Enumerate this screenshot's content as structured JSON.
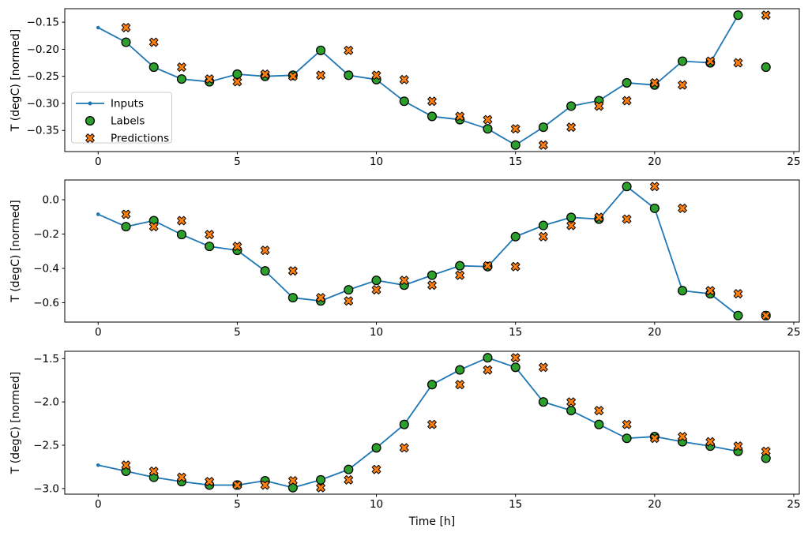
{
  "figure": {
    "xlabel": "Time [h]",
    "ylabel": "T (degC) [normed]",
    "background": "#ffffff",
    "spine_color": "#000000",
    "text_color": "#000000",
    "x_ticks": [
      {
        "v": 0,
        "label": "0"
      },
      {
        "v": 5,
        "label": "5"
      },
      {
        "v": 10,
        "label": "10"
      },
      {
        "v": 15,
        "label": "15"
      },
      {
        "v": 20,
        "label": "20"
      },
      {
        "v": 25,
        "label": "25"
      }
    ],
    "legend": {
      "items": [
        {
          "label": "Inputs",
          "type": "line",
          "color": "#1f77b4",
          "edge": "#1f77b4"
        },
        {
          "label": "Labels",
          "type": "circle",
          "color": "#2ca02c",
          "edge": "#000000"
        },
        {
          "label": "Predictions",
          "type": "x",
          "color": "#ff7f0e",
          "edge": "#000000"
        }
      ]
    }
  },
  "chart_data": [
    {
      "type": "line",
      "ylabel": "T (degC) [normed]",
      "xlim": [
        -1.2,
        25.2
      ],
      "ylim": [
        -0.389,
        -0.125
      ],
      "grid": false,
      "legend_position": "center-left-of-first-subplot",
      "y_ticks": [
        {
          "v": -0.15,
          "label": "−0.15"
        },
        {
          "v": -0.2,
          "label": "−0.20"
        },
        {
          "v": -0.25,
          "label": "−0.25"
        },
        {
          "v": -0.3,
          "label": "−0.30"
        },
        {
          "v": -0.35,
          "label": "−0.35"
        }
      ],
      "inputs": {
        "x": [
          0,
          1,
          2,
          3,
          4,
          5,
          6,
          7,
          8,
          9,
          10,
          11,
          12,
          13,
          14,
          15,
          16,
          17,
          18,
          19,
          20,
          21,
          22,
          23
        ],
        "y": [
          -0.16,
          -0.187,
          -0.233,
          -0.255,
          -0.26,
          -0.246,
          -0.25,
          -0.248,
          -0.202,
          -0.248,
          -0.256,
          -0.296,
          -0.324,
          -0.33,
          -0.347,
          -0.377,
          -0.344,
          -0.305,
          -0.295,
          -0.262,
          -0.266,
          -0.222,
          -0.225,
          -0.137
        ]
      },
      "labels": {
        "x": [
          1,
          2,
          3,
          4,
          5,
          6,
          7,
          8,
          9,
          10,
          11,
          12,
          13,
          14,
          15,
          16,
          17,
          18,
          19,
          20,
          21,
          22,
          23,
          24
        ],
        "y": [
          -0.187,
          -0.233,
          -0.255,
          -0.26,
          -0.246,
          -0.25,
          -0.248,
          -0.202,
          -0.248,
          -0.256,
          -0.296,
          -0.324,
          -0.33,
          -0.347,
          -0.377,
          -0.344,
          -0.305,
          -0.295,
          -0.262,
          -0.266,
          -0.222,
          -0.225,
          -0.137,
          -0.233
        ]
      },
      "predictions": {
        "x": [
          1,
          2,
          3,
          4,
          5,
          6,
          7,
          8,
          9,
          10,
          11,
          12,
          13,
          14,
          15,
          16,
          17,
          18,
          19,
          20,
          21,
          22,
          23,
          24
        ],
        "y": [
          -0.16,
          -0.187,
          -0.233,
          -0.255,
          -0.26,
          -0.246,
          -0.25,
          -0.248,
          -0.202,
          -0.248,
          -0.256,
          -0.296,
          -0.324,
          -0.33,
          -0.347,
          -0.377,
          -0.344,
          -0.305,
          -0.295,
          -0.262,
          -0.266,
          -0.222,
          -0.225,
          -0.137
        ]
      }
    },
    {
      "type": "line",
      "ylabel": "T (degC) [normed]",
      "xlim": [
        -1.2,
        25.2
      ],
      "ylim": [
        -0.713,
        0.115
      ],
      "grid": false,
      "y_ticks": [
        {
          "v": 0.0,
          "label": "0.0"
        },
        {
          "v": -0.2,
          "label": "−0.2"
        },
        {
          "v": -0.4,
          "label": "−0.4"
        },
        {
          "v": -0.6,
          "label": "−0.6"
        }
      ],
      "inputs": {
        "x": [
          0,
          1,
          2,
          3,
          4,
          5,
          6,
          7,
          8,
          9,
          10,
          11,
          12,
          13,
          14,
          15,
          16,
          17,
          18,
          19,
          20,
          21,
          22,
          23
        ],
        "y": [
          -0.085,
          -0.157,
          -0.122,
          -0.203,
          -0.272,
          -0.295,
          -0.415,
          -0.571,
          -0.59,
          -0.525,
          -0.47,
          -0.498,
          -0.44,
          -0.385,
          -0.39,
          -0.215,
          -0.15,
          -0.103,
          -0.113,
          0.077,
          -0.05,
          -0.53,
          -0.548,
          -0.675
        ]
      },
      "labels": {
        "x": [
          1,
          2,
          3,
          4,
          5,
          6,
          7,
          8,
          9,
          10,
          11,
          12,
          13,
          14,
          15,
          16,
          17,
          18,
          19,
          20,
          21,
          22,
          23,
          24
        ],
        "y": [
          -0.157,
          -0.122,
          -0.203,
          -0.272,
          -0.295,
          -0.415,
          -0.571,
          -0.59,
          -0.525,
          -0.47,
          -0.498,
          -0.44,
          -0.385,
          -0.39,
          -0.215,
          -0.15,
          -0.103,
          -0.113,
          0.077,
          -0.05,
          -0.53,
          -0.548,
          -0.675,
          -0.675
        ]
      },
      "predictions": {
        "x": [
          1,
          2,
          3,
          4,
          5,
          6,
          7,
          8,
          9,
          10,
          11,
          12,
          13,
          14,
          15,
          16,
          17,
          18,
          19,
          20,
          21,
          22,
          23,
          24
        ],
        "y": [
          -0.085,
          -0.157,
          -0.122,
          -0.203,
          -0.272,
          -0.295,
          -0.415,
          -0.571,
          -0.59,
          -0.525,
          -0.47,
          -0.498,
          -0.44,
          -0.385,
          -0.39,
          -0.215,
          -0.15,
          -0.103,
          -0.113,
          0.077,
          -0.05,
          -0.53,
          -0.548,
          -0.675
        ]
      }
    },
    {
      "type": "line",
      "ylabel": "T (degC) [normed]",
      "xlabel": "Time [h]",
      "xlim": [
        -1.2,
        25.2
      ],
      "ylim": [
        -3.065,
        -1.415
      ],
      "grid": false,
      "y_ticks": [
        {
          "v": -1.5,
          "label": "−1.5"
        },
        {
          "v": -2.0,
          "label": "−2.0"
        },
        {
          "v": -2.5,
          "label": "−2.5"
        },
        {
          "v": -3.0,
          "label": "−3.0"
        }
      ],
      "inputs": {
        "x": [
          0,
          1,
          2,
          3,
          4,
          5,
          6,
          7,
          8,
          9,
          10,
          11,
          12,
          13,
          14,
          15,
          16,
          17,
          18,
          19,
          20,
          21,
          22,
          23
        ],
        "y": [
          -2.73,
          -2.8,
          -2.87,
          -2.92,
          -2.96,
          -2.96,
          -2.91,
          -2.99,
          -2.9,
          -2.78,
          -2.53,
          -2.26,
          -1.8,
          -1.63,
          -1.49,
          -1.6,
          -2.0,
          -2.1,
          -2.26,
          -2.42,
          -2.4,
          -2.46,
          -2.51,
          -2.57
        ]
      },
      "labels": {
        "x": [
          1,
          2,
          3,
          4,
          5,
          6,
          7,
          8,
          9,
          10,
          11,
          12,
          13,
          14,
          15,
          16,
          17,
          18,
          19,
          20,
          21,
          22,
          23,
          24
        ],
        "y": [
          -2.8,
          -2.87,
          -2.92,
          -2.96,
          -2.96,
          -2.91,
          -2.99,
          -2.9,
          -2.78,
          -2.53,
          -2.26,
          -1.8,
          -1.63,
          -1.49,
          -1.6,
          -2.0,
          -2.1,
          -2.26,
          -2.42,
          -2.4,
          -2.46,
          -2.51,
          -2.57,
          -2.65
        ]
      },
      "predictions": {
        "x": [
          1,
          2,
          3,
          4,
          5,
          6,
          7,
          8,
          9,
          10,
          11,
          12,
          13,
          14,
          15,
          16,
          17,
          18,
          19,
          20,
          21,
          22,
          23,
          24
        ],
        "y": [
          -2.73,
          -2.8,
          -2.87,
          -2.92,
          -2.96,
          -2.96,
          -2.91,
          -2.99,
          -2.9,
          -2.78,
          -2.53,
          -2.26,
          -1.8,
          -1.63,
          -1.49,
          -1.6,
          -2.0,
          -2.1,
          -2.26,
          -2.42,
          -2.4,
          -2.46,
          -2.51,
          -2.57
        ]
      }
    }
  ]
}
